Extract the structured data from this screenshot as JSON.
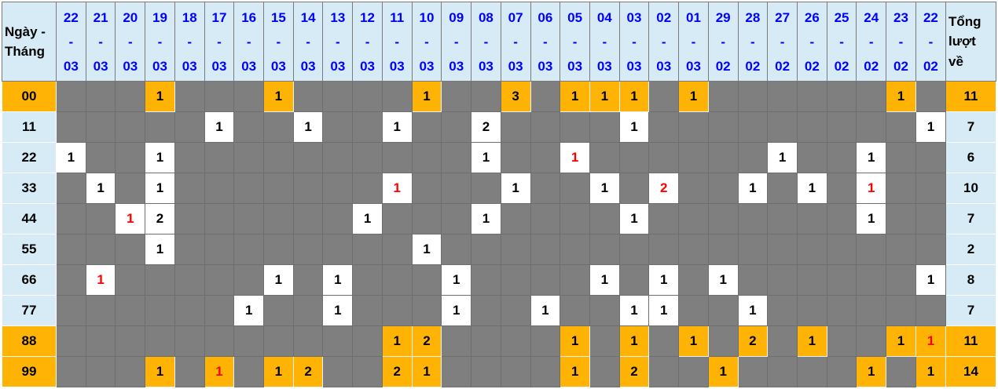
{
  "colors": {
    "orange": "#FFB405",
    "pale_blue": "#D6EBF5",
    "gray_cell": "#7F7F7F",
    "grid_line": "#6E6E6E",
    "header_border": "#7A7A7A",
    "blue_text": "#0000FF",
    "red_text": "#FF0000",
    "black_text": "#000000",
    "white": "#FFFFFF"
  },
  "header": {
    "corner_label": "Ngày - Tháng",
    "total_label": "Tổng lượt về",
    "dates": [
      {
        "day": "22",
        "month": "03"
      },
      {
        "day": "21",
        "month": "03"
      },
      {
        "day": "20",
        "month": "03"
      },
      {
        "day": "19",
        "month": "03"
      },
      {
        "day": "18",
        "month": "03"
      },
      {
        "day": "17",
        "month": "03"
      },
      {
        "day": "16",
        "month": "03"
      },
      {
        "day": "15",
        "month": "03"
      },
      {
        "day": "14",
        "month": "03"
      },
      {
        "day": "13",
        "month": "03"
      },
      {
        "day": "12",
        "month": "03"
      },
      {
        "day": "11",
        "month": "03"
      },
      {
        "day": "10",
        "month": "03"
      },
      {
        "day": "09",
        "month": "03"
      },
      {
        "day": "08",
        "month": "03"
      },
      {
        "day": "07",
        "month": "03"
      },
      {
        "day": "06",
        "month": "03"
      },
      {
        "day": "05",
        "month": "03"
      },
      {
        "day": "04",
        "month": "03"
      },
      {
        "day": "03",
        "month": "03"
      },
      {
        "day": "02",
        "month": "03"
      },
      {
        "day": "01",
        "month": "03"
      },
      {
        "day": "29",
        "month": "02"
      },
      {
        "day": "28",
        "month": "02"
      },
      {
        "day": "27",
        "month": "02"
      },
      {
        "day": "26",
        "month": "02"
      },
      {
        "day": "25",
        "month": "02"
      },
      {
        "day": "24",
        "month": "02"
      },
      {
        "day": "23",
        "month": "02"
      },
      {
        "day": "22",
        "month": "02"
      }
    ]
  },
  "rows": [
    {
      "label": "00",
      "highlighted": true,
      "total": "11",
      "hits": [
        {
          "col": 3,
          "v": "1"
        },
        {
          "col": 7,
          "v": "1"
        },
        {
          "col": 12,
          "v": "1"
        },
        {
          "col": 15,
          "v": "3"
        },
        {
          "col": 17,
          "v": "1"
        },
        {
          "col": 18,
          "v": "1"
        },
        {
          "col": 19,
          "v": "1"
        },
        {
          "col": 21,
          "v": "1"
        },
        {
          "col": 28,
          "v": "1"
        }
      ]
    },
    {
      "label": "11",
      "highlighted": false,
      "total": "7",
      "hits": [
        {
          "col": 5,
          "v": "1"
        },
        {
          "col": 8,
          "v": "1"
        },
        {
          "col": 11,
          "v": "1"
        },
        {
          "col": 14,
          "v": "2"
        },
        {
          "col": 19,
          "v": "1"
        },
        {
          "col": 29,
          "v": "1"
        }
      ]
    },
    {
      "label": "22",
      "highlighted": false,
      "total": "6",
      "hits": [
        {
          "col": 0,
          "v": "1"
        },
        {
          "col": 3,
          "v": "1"
        },
        {
          "col": 14,
          "v": "1"
        },
        {
          "col": 17,
          "v": "1",
          "red": true
        },
        {
          "col": 24,
          "v": "1"
        },
        {
          "col": 27,
          "v": "1"
        }
      ]
    },
    {
      "label": "33",
      "highlighted": false,
      "total": "10",
      "hits": [
        {
          "col": 1,
          "v": "1"
        },
        {
          "col": 3,
          "v": "1"
        },
        {
          "col": 11,
          "v": "1",
          "red": true
        },
        {
          "col": 15,
          "v": "1"
        },
        {
          "col": 18,
          "v": "1"
        },
        {
          "col": 20,
          "v": "2",
          "red": true
        },
        {
          "col": 23,
          "v": "1"
        },
        {
          "col": 25,
          "v": "1"
        },
        {
          "col": 27,
          "v": "1",
          "red": true
        }
      ]
    },
    {
      "label": "44",
      "highlighted": false,
      "total": "7",
      "hits": [
        {
          "col": 2,
          "v": "1",
          "red": true
        },
        {
          "col": 3,
          "v": "2"
        },
        {
          "col": 10,
          "v": "1"
        },
        {
          "col": 14,
          "v": "1"
        },
        {
          "col": 19,
          "v": "1"
        },
        {
          "col": 27,
          "v": "1"
        }
      ]
    },
    {
      "label": "55",
      "highlighted": false,
      "total": "2",
      "hits": [
        {
          "col": 3,
          "v": "1"
        },
        {
          "col": 12,
          "v": "1"
        }
      ]
    },
    {
      "label": "66",
      "highlighted": false,
      "total": "8",
      "hits": [
        {
          "col": 1,
          "v": "1",
          "red": true
        },
        {
          "col": 7,
          "v": "1"
        },
        {
          "col": 9,
          "v": "1"
        },
        {
          "col": 13,
          "v": "1"
        },
        {
          "col": 18,
          "v": "1"
        },
        {
          "col": 20,
          "v": "1"
        },
        {
          "col": 22,
          "v": "1"
        },
        {
          "col": 29,
          "v": "1"
        }
      ]
    },
    {
      "label": "77",
      "highlighted": false,
      "total": "7",
      "hits": [
        {
          "col": 6,
          "v": "1"
        },
        {
          "col": 9,
          "v": "1"
        },
        {
          "col": 13,
          "v": "1"
        },
        {
          "col": 16,
          "v": "1"
        },
        {
          "col": 19,
          "v": "1"
        },
        {
          "col": 20,
          "v": "1"
        },
        {
          "col": 23,
          "v": "1"
        }
      ]
    },
    {
      "label": "88",
      "highlighted": true,
      "total": "11",
      "hits": [
        {
          "col": 11,
          "v": "1"
        },
        {
          "col": 12,
          "v": "2"
        },
        {
          "col": 17,
          "v": "1"
        },
        {
          "col": 19,
          "v": "1"
        },
        {
          "col": 21,
          "v": "1"
        },
        {
          "col": 23,
          "v": "2"
        },
        {
          "col": 25,
          "v": "1"
        },
        {
          "col": 28,
          "v": "1"
        },
        {
          "col": 29,
          "v": "1",
          "red": true
        }
      ]
    },
    {
      "label": "99",
      "highlighted": true,
      "total": "14",
      "hits": [
        {
          "col": 3,
          "v": "1"
        },
        {
          "col": 5,
          "v": "1",
          "red": true
        },
        {
          "col": 7,
          "v": "1"
        },
        {
          "col": 8,
          "v": "2"
        },
        {
          "col": 11,
          "v": "2"
        },
        {
          "col": 12,
          "v": "1"
        },
        {
          "col": 17,
          "v": "1"
        },
        {
          "col": 19,
          "v": "2"
        },
        {
          "col": 22,
          "v": "1"
        },
        {
          "col": 27,
          "v": "1"
        },
        {
          "col": 29,
          "v": "1"
        }
      ]
    }
  ]
}
